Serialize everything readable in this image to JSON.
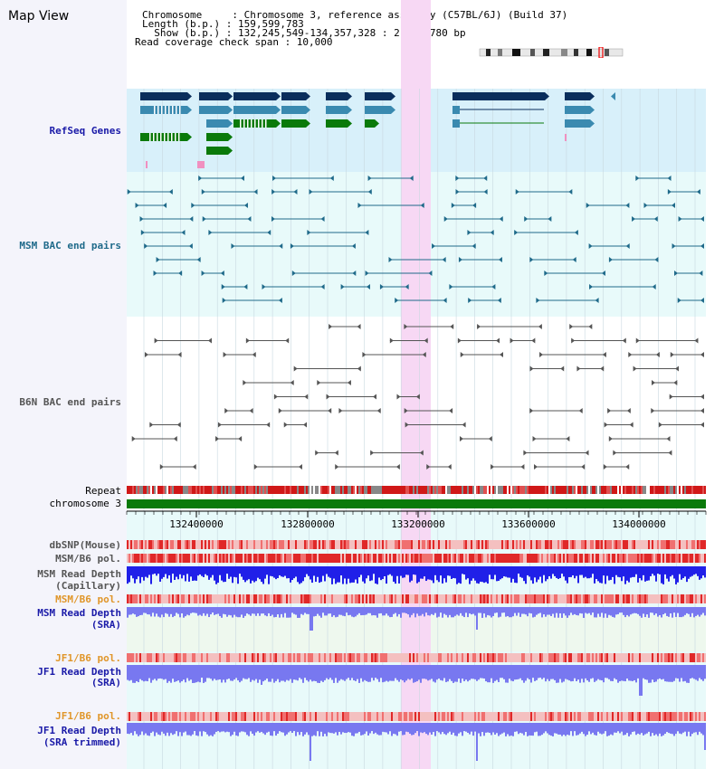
{
  "title": "Map View",
  "info": {
    "chromosome": "Chromosome     : Chromosome 3, reference assembly (C57BL/6J) (Build 37)",
    "length": "Length (b.p.) : 159,599,783",
    "show": "  Show (b.p.) : 132,245,549-134,357,328 : 2,111,780 bp",
    "coverage": "Read coverage check span : 10,000"
  },
  "tracks": {
    "refseq": "RefSeq Genes",
    "msm_bac": "MSM BAC end pairs",
    "b6n_bac": "B6N BAC end pairs",
    "repeat": "Repeat",
    "chrom": "chromosome 3",
    "dbsnp": "dbSNP(Mouse)",
    "msm_b6_pol_1": "MSM/B6 pol.",
    "msm_depth_cap_1": "MSM Read Depth",
    "msm_depth_cap_2": "(Capillary)",
    "msm_b6_pol_2": "MSM/B6 pol.",
    "msm_depth_sra_1": "MSM Read Depth",
    "msm_depth_sra_2": "(SRA)",
    "jf1_b6_pol_1": "JF1/B6 pol.",
    "jf1_depth_1": "JF1 Read Depth",
    "jf1_depth_2": "(SRA)",
    "jf1_b6_pol_2": "JF1/B6 pol.",
    "jf1_trim_1": "JF1 Read Depth",
    "jf1_trim_2": "(SRA trimmed)"
  },
  "axis": {
    "ticks": [
      "132400000",
      "132800000",
      "133200000",
      "133600000",
      "134000000"
    ]
  },
  "colors": {
    "refseq_bg": "#d8f0fa",
    "bac_bg": "#e8fafa",
    "highlight": "#f7d8f4",
    "gene_dark": "#0a2e5c",
    "gene_mid": "#3a8ab0",
    "gene_green": "#0a7a0a",
    "msm_pair": "#1f6a8a",
    "b6n_pair": "#555555",
    "depth_dark": "#2020e8",
    "depth_light": "#7878f0",
    "pol_red": "#e83030"
  }
}
